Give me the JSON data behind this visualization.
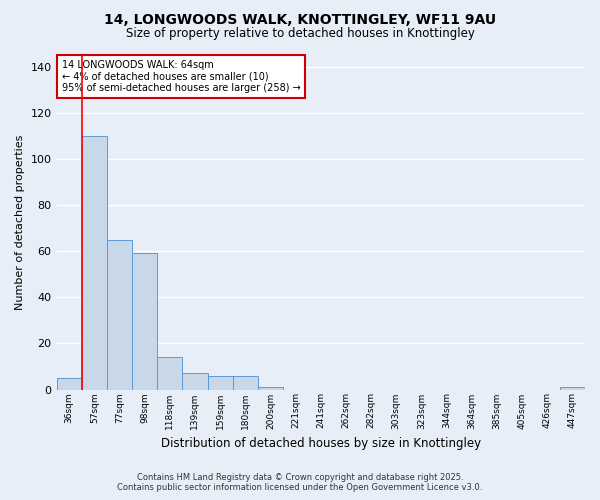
{
  "title_line1": "14, LONGWOODS WALK, KNOTTINGLEY, WF11 9AU",
  "title_line2": "Size of property relative to detached houses in Knottingley",
  "xlabel": "Distribution of detached houses by size in Knottingley",
  "ylabel": "Number of detached properties",
  "categories": [
    "36sqm",
    "57sqm",
    "77sqm",
    "98sqm",
    "118sqm",
    "139sqm",
    "159sqm",
    "180sqm",
    "200sqm",
    "221sqm",
    "241sqm",
    "262sqm",
    "282sqm",
    "303sqm",
    "323sqm",
    "344sqm",
    "364sqm",
    "385sqm",
    "405sqm",
    "426sqm",
    "447sqm"
  ],
  "values": [
    5,
    110,
    65,
    59,
    14,
    7,
    6,
    6,
    1,
    0,
    0,
    0,
    0,
    0,
    0,
    0,
    0,
    0,
    0,
    0,
    1
  ],
  "bar_color": "#c8d8e8",
  "bar_edge_color": "#5b9bd5",
  "red_line_index": 1,
  "annotation_text": "14 LONGWOODS WALK: 64sqm\n← 4% of detached houses are smaller (10)\n95% of semi-detached houses are larger (258) →",
  "annotation_box_color": "#ffffff",
  "annotation_border_color": "#cc0000",
  "ylim": [
    0,
    145
  ],
  "yticks": [
    0,
    20,
    40,
    60,
    80,
    100,
    120,
    140
  ],
  "background_color": "#e8eef8",
  "grid_color": "#ffffff",
  "footer_line1": "Contains HM Land Registry data © Crown copyright and database right 2025.",
  "footer_line2": "Contains public sector information licensed under the Open Government Licence v3.0."
}
